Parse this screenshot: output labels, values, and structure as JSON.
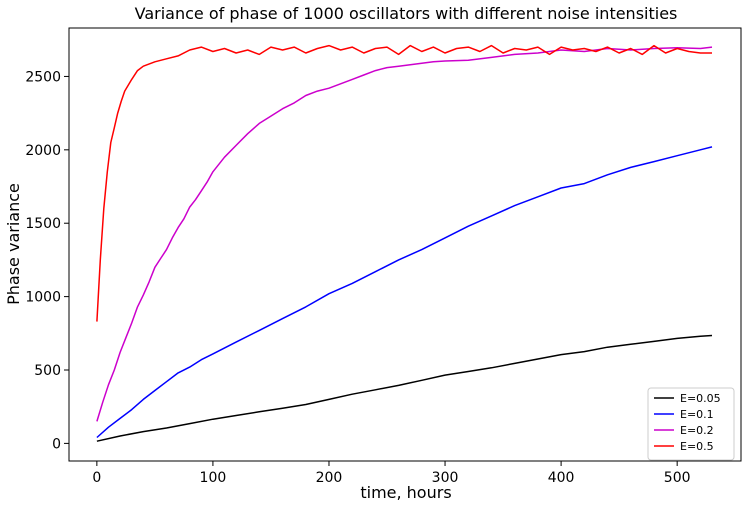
{
  "chart_data": {
    "type": "line",
    "title": "Variance of phase of 1000 oscillators with different noise intensities",
    "xlabel": "time, hours",
    "ylabel": "Phase variance",
    "xlim": [
      -24,
      555
    ],
    "ylim": [
      -120,
      2830
    ],
    "xticks": [
      0,
      100,
      200,
      300,
      400,
      500
    ],
    "yticks": [
      0,
      500,
      1000,
      1500,
      2000,
      2500
    ],
    "grid": false,
    "legend_position": "lower-right",
    "series": [
      {
        "name": "E=0.05",
        "color": "#000000",
        "x": [
          0,
          20,
          40,
          60,
          80,
          100,
          120,
          140,
          160,
          180,
          200,
          220,
          240,
          260,
          280,
          300,
          320,
          340,
          360,
          380,
          400,
          420,
          440,
          460,
          480,
          500,
          520,
          530
        ],
        "y": [
          15,
          50,
          80,
          105,
          135,
          165,
          190,
          215,
          240,
          265,
          300,
          335,
          365,
          395,
          430,
          465,
          490,
          515,
          545,
          575,
          605,
          625,
          655,
          675,
          695,
          715,
          730,
          735
        ]
      },
      {
        "name": "E=0.1",
        "color": "#0000ff",
        "x": [
          0,
          10,
          20,
          30,
          40,
          50,
          60,
          70,
          80,
          90,
          100,
          120,
          140,
          160,
          180,
          200,
          220,
          240,
          260,
          280,
          300,
          320,
          340,
          360,
          380,
          400,
          420,
          440,
          460,
          480,
          500,
          520,
          530
        ],
        "y": [
          40,
          110,
          170,
          230,
          300,
          360,
          420,
          480,
          520,
          570,
          610,
          690,
          770,
          850,
          930,
          1020,
          1090,
          1170,
          1250,
          1320,
          1400,
          1480,
          1550,
          1620,
          1680,
          1740,
          1770,
          1830,
          1880,
          1920,
          1960,
          2000,
          2020
        ]
      },
      {
        "name": "E=0.2",
        "color": "#cc00cc",
        "x": [
          0,
          5,
          10,
          15,
          20,
          25,
          30,
          35,
          40,
          45,
          50,
          55,
          60,
          65,
          70,
          75,
          80,
          85,
          90,
          95,
          100,
          110,
          120,
          130,
          140,
          150,
          160,
          170,
          180,
          190,
          200,
          210,
          220,
          230,
          240,
          250,
          260,
          270,
          280,
          290,
          300,
          320,
          340,
          360,
          380,
          400,
          420,
          440,
          460,
          480,
          500,
          520,
          530
        ],
        "y": [
          150,
          280,
          400,
          500,
          620,
          720,
          820,
          930,
          1010,
          1100,
          1200,
          1260,
          1320,
          1400,
          1470,
          1530,
          1610,
          1660,
          1720,
          1780,
          1850,
          1950,
          2030,
          2110,
          2180,
          2230,
          2280,
          2320,
          2370,
          2400,
          2420,
          2450,
          2480,
          2510,
          2540,
          2560,
          2570,
          2580,
          2590,
          2600,
          2605,
          2610,
          2630,
          2650,
          2660,
          2680,
          2670,
          2690,
          2680,
          2690,
          2695,
          2690,
          2700
        ]
      },
      {
        "name": "E=0.5",
        "color": "#ff0000",
        "x": [
          0,
          3,
          6,
          9,
          12,
          15,
          18,
          21,
          24,
          27,
          30,
          35,
          40,
          50,
          60,
          70,
          80,
          90,
          100,
          110,
          120,
          130,
          140,
          150,
          160,
          170,
          180,
          190,
          200,
          210,
          220,
          230,
          240,
          250,
          260,
          270,
          280,
          290,
          300,
          310,
          320,
          330,
          340,
          350,
          360,
          370,
          380,
          390,
          400,
          410,
          420,
          430,
          440,
          450,
          460,
          470,
          480,
          490,
          500,
          510,
          520,
          530
        ],
        "y": [
          830,
          1250,
          1600,
          1850,
          2050,
          2150,
          2250,
          2330,
          2400,
          2440,
          2480,
          2540,
          2570,
          2600,
          2620,
          2640,
          2680,
          2700,
          2670,
          2690,
          2660,
          2680,
          2650,
          2700,
          2680,
          2700,
          2660,
          2690,
          2710,
          2680,
          2700,
          2660,
          2690,
          2700,
          2650,
          2710,
          2670,
          2700,
          2660,
          2690,
          2700,
          2670,
          2710,
          2660,
          2690,
          2680,
          2700,
          2650,
          2700,
          2680,
          2690,
          2670,
          2700,
          2660,
          2690,
          2650,
          2710,
          2660,
          2690,
          2670,
          2660,
          2660
        ]
      }
    ]
  }
}
